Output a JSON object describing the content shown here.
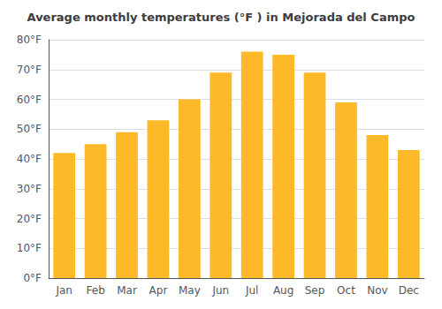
{
  "chart_data": {
    "type": "bar",
    "title": "Average monthly temperatures (°F ) in Mejorada del Campo",
    "categories": [
      "Jan",
      "Feb",
      "Mar",
      "Apr",
      "May",
      "Jun",
      "Jul",
      "Aug",
      "Sep",
      "Oct",
      "Nov",
      "Dec"
    ],
    "values": [
      42,
      45,
      49,
      53,
      60,
      69,
      76,
      75,
      69,
      59,
      48,
      43
    ],
    "color": "#FDB927",
    "ylim": [
      0,
      80
    ],
    "yticks": [
      {
        "value": 0,
        "label": "0°F"
      },
      {
        "value": 10,
        "label": "10°F"
      },
      {
        "value": 20,
        "label": "20°F"
      },
      {
        "value": 30,
        "label": "30°F"
      },
      {
        "value": 40,
        "label": "40°F"
      },
      {
        "value": 50,
        "label": "50°F"
      },
      {
        "value": 60,
        "label": "60°F"
      },
      {
        "value": 70,
        "label": "70°F"
      },
      {
        "value": 80,
        "label": "80°F"
      }
    ],
    "grid": true
  }
}
